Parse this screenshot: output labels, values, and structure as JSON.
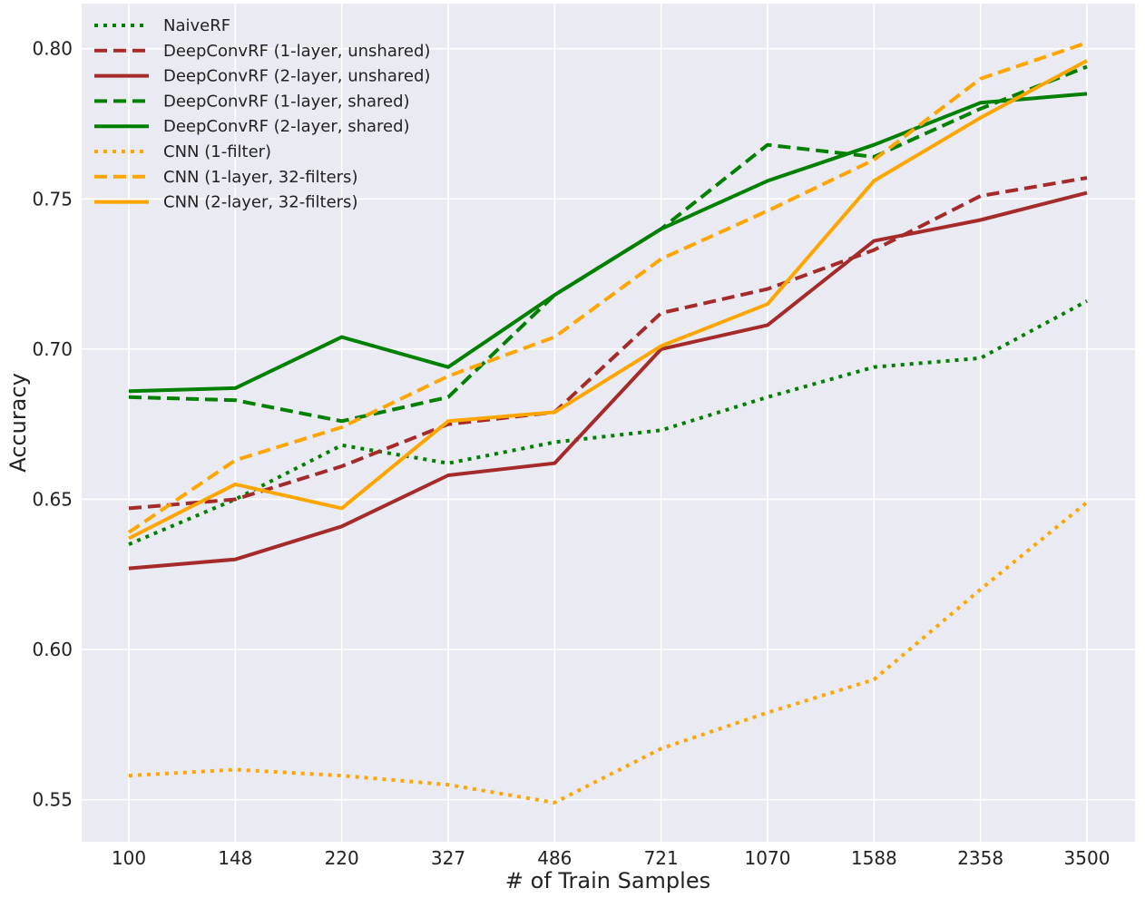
{
  "chart_data": {
    "type": "line",
    "title": "",
    "xlabel": "# of Train Samples",
    "ylabel": "Accuracy",
    "categories": [
      "100",
      "148",
      "220",
      "327",
      "486",
      "721",
      "1070",
      "1588",
      "2358",
      "3500"
    ],
    "yticks": [
      "0.55",
      "0.60",
      "0.65",
      "0.70",
      "0.75",
      "0.80"
    ],
    "ylim": [
      0.536,
      0.815
    ],
    "grid": true,
    "legend_position": "top-left",
    "background_color": "#eaeaf2",
    "series": [
      {
        "name": "NaiveRF",
        "color": "#008000",
        "style": "dotted",
        "values": [
          0.635,
          0.65,
          0.668,
          0.662,
          0.669,
          0.673,
          0.684,
          0.694,
          0.697,
          0.716
        ]
      },
      {
        "name": "DeepConvRF (1-layer, unshared)",
        "color": "#a52a2a",
        "style": "dashed",
        "values": [
          0.647,
          0.65,
          0.661,
          0.675,
          0.679,
          0.712,
          0.72,
          0.733,
          0.751,
          0.757
        ]
      },
      {
        "name": "DeepConvRF (2-layer, unshared)",
        "color": "#a52a2a",
        "style": "solid",
        "values": [
          0.627,
          0.63,
          0.641,
          0.658,
          0.662,
          0.7,
          0.708,
          0.736,
          0.743,
          0.752
        ]
      },
      {
        "name": "DeepConvRF (1-layer, shared)",
        "color": "#008000",
        "style": "dashed",
        "values": [
          0.684,
          0.683,
          0.676,
          0.684,
          0.718,
          0.74,
          0.768,
          0.764,
          0.78,
          0.794
        ]
      },
      {
        "name": "DeepConvRF (2-layer, shared)",
        "color": "#008000",
        "style": "solid",
        "values": [
          0.686,
          0.687,
          0.704,
          0.694,
          0.718,
          0.74,
          0.756,
          0.768,
          0.782,
          0.785
        ]
      },
      {
        "name": "CNN (1-filter)",
        "color": "#ffa500",
        "style": "dotted",
        "values": [
          0.558,
          0.56,
          0.558,
          0.555,
          0.549,
          0.567,
          0.579,
          0.59,
          0.62,
          0.649
        ]
      },
      {
        "name": "CNN (1-layer, 32-filters)",
        "color": "#ffa500",
        "style": "dashed",
        "values": [
          0.639,
          0.663,
          0.674,
          0.691,
          0.704,
          0.73,
          0.746,
          0.763,
          0.79,
          0.802
        ]
      },
      {
        "name": "CNN (2-layer, 32-filters)",
        "color": "#ffa500",
        "style": "solid",
        "values": [
          0.637,
          0.655,
          0.647,
          0.676,
          0.679,
          0.701,
          0.715,
          0.756,
          0.777,
          0.796
        ]
      }
    ]
  }
}
